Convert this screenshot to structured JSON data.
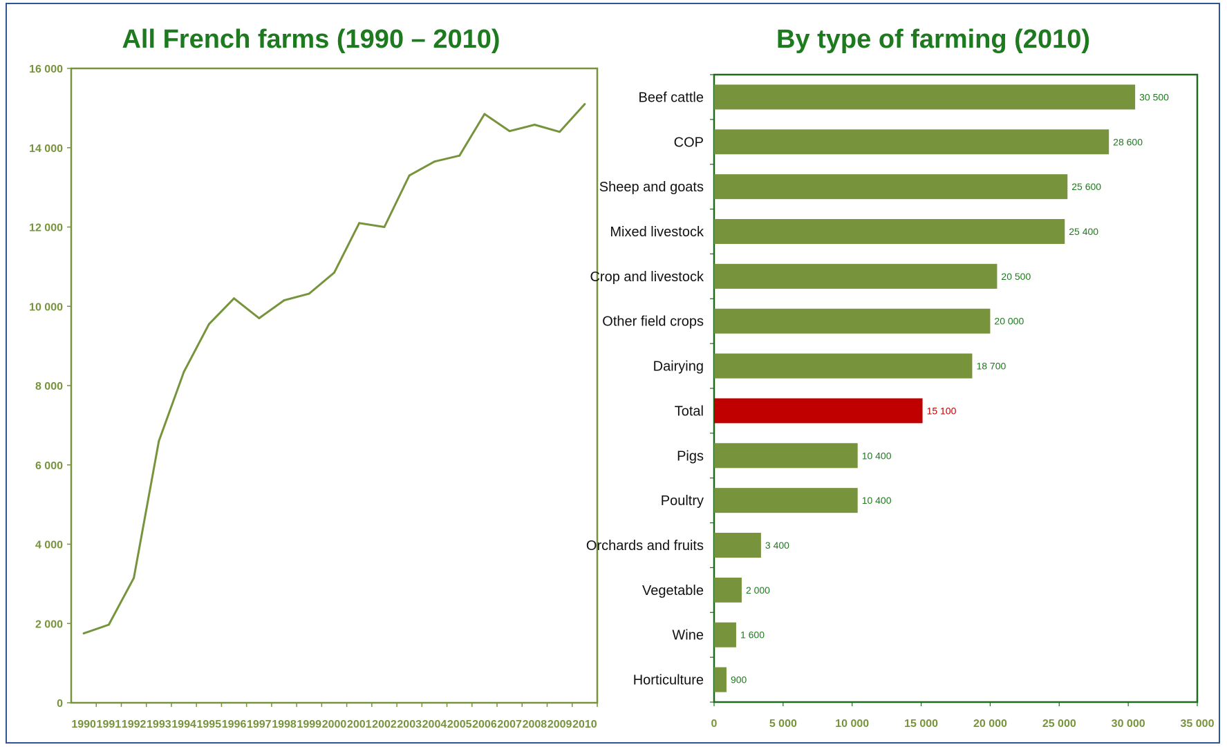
{
  "chart_data": [
    {
      "type": "line",
      "title": "All French farms (1990 – 2010)",
      "x": [
        "1990",
        "1991",
        "1992",
        "1993",
        "1994",
        "1995",
        "1996",
        "1997",
        "1998",
        "1999",
        "2000",
        "2001",
        "2002",
        "2003",
        "2004",
        "2005",
        "2006",
        "2007",
        "2008",
        "2009",
        "2010"
      ],
      "series": [
        {
          "values": [
            1750,
            1970,
            3150,
            6600,
            8350,
            9550,
            10200,
            9700,
            10150,
            10320,
            10850,
            12100,
            12000,
            13300,
            13650,
            13800,
            14850,
            14420,
            14580,
            14400,
            15100
          ]
        }
      ],
      "yticks": [
        0,
        2000,
        4000,
        6000,
        8000,
        10000,
        12000,
        14000,
        16000
      ],
      "ytick_labels": [
        "0",
        "2 000",
        "4 000",
        "6 000",
        "8 000",
        "10 000",
        "12 000",
        "14 000",
        "16 000"
      ],
      "ylim": [
        0,
        16000
      ],
      "color": "#77933c"
    },
    {
      "type": "bar",
      "orientation": "horizontal",
      "title": "By type of farming (2010)",
      "categories": [
        "Beef cattle",
        "COP",
        "Sheep and goats",
        "Mixed livestock",
        "Crop and livestock",
        "Other field crops",
        "Dairying",
        "Total",
        "Pigs",
        "Poultry",
        "Orchards and fruits",
        "Vegetable",
        "Wine",
        "Horticulture"
      ],
      "values": [
        30500,
        28600,
        25600,
        25400,
        20500,
        20000,
        18700,
        15100,
        10400,
        10400,
        3400,
        2000,
        1600,
        900
      ],
      "value_labels": [
        "30 500",
        "28 600",
        "25 600",
        "25 400",
        "20 500",
        "20 000",
        "18 700",
        "15 100",
        "10 400",
        "10 400",
        "3 400",
        "2 000",
        "1 600",
        "900"
      ],
      "xticks": [
        0,
        5000,
        10000,
        15000,
        20000,
        25000,
        30000,
        35000
      ],
      "xtick_labels": [
        "0",
        "5 000",
        "10 000",
        "15 000",
        "20 000",
        "25 000",
        "30 000",
        "35 000"
      ],
      "xlim": [
        0,
        35000
      ],
      "bar_color": "#77933c",
      "highlight_category": "Total",
      "highlight_color": "#c00000",
      "label_color": "#1e7a1e"
    }
  ]
}
